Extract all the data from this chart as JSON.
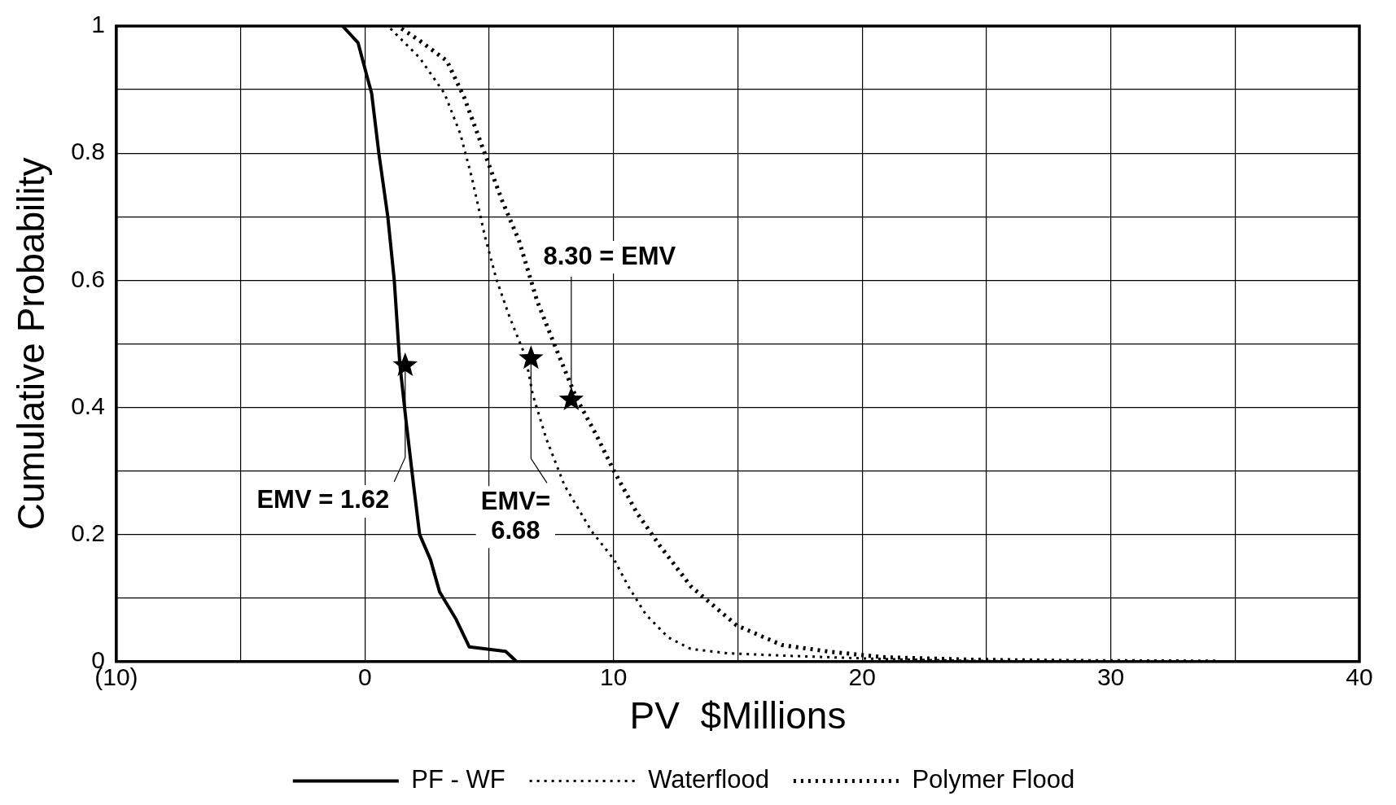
{
  "chart_data": {
    "type": "line",
    "xlabel": "PV  $Millions",
    "ylabel": "Cumulative Probability",
    "xlim": [
      -10,
      40
    ],
    "xticks": [
      {
        "value": -10,
        "label": "(10)"
      },
      {
        "value": -5,
        "label": null
      },
      0,
      {
        "value": 5,
        "label": null
      },
      10,
      {
        "value": 15,
        "label": null
      },
      20,
      {
        "value": 25,
        "label": null
      },
      30,
      {
        "value": 35,
        "label": null
      },
      40
    ],
    "ylim": [
      0,
      1
    ],
    "yticks": [
      0,
      {
        "value": 0.1,
        "label": null
      },
      0.2,
      {
        "value": 0.3,
        "label": null
      },
      0.4,
      {
        "value": 0.5,
        "label": null
      },
      0.6,
      {
        "value": 0.7,
        "label": null
      },
      0.8,
      {
        "value": 0.9,
        "label": null
      },
      1
    ],
    "grid": true,
    "legend": "bottom",
    "marker": "none",
    "series": [
      {
        "name": "PF - WF",
        "color": "#000000",
        "line_style": "solid",
        "x": [
          -0.9,
          -0.28,
          0.09,
          0.27,
          0.56,
          0.92,
          1.18,
          1.4,
          1.65,
          1.95,
          2.2,
          2.64,
          3.0,
          3.66,
          4.2,
          5.66,
          6.1
        ],
        "values": [
          1,
          0.974,
          0.92,
          0.894,
          0.8,
          0.7,
          0.6,
          0.47,
          0.38,
          0.28,
          0.2,
          0.16,
          0.11,
          0.067,
          0.023,
          0.016,
          0
        ]
      },
      {
        "name": "Waterflood",
        "color": "#000000",
        "line_style": "dotted",
        "x": [
          1.03,
          2.2,
          3.2,
          3.84,
          4.31,
          4.82,
          5.3,
          5.84,
          6.46,
          6.75,
          7.3,
          8.03,
          9.12,
          10.03,
          10.6,
          11.3,
          12.2,
          13.1,
          14.6,
          17.1,
          20.8,
          24.4,
          28
        ],
        "values": [
          0.996,
          0.95,
          0.894,
          0.83,
          0.76,
          0.67,
          0.6,
          0.54,
          0.48,
          0.42,
          0.35,
          0.277,
          0.205,
          0.16,
          0.118,
          0.074,
          0.038,
          0.02,
          0.013,
          0.009,
          0.004,
          0.001,
          0
        ]
      },
      {
        "name": "Polymer Flood",
        "color": "#000000",
        "line_style": "dotted",
        "x": [
          1.47,
          2.2,
          3.3,
          4.0,
          4.75,
          5.5,
          6.2,
          6.93,
          7.66,
          8.5,
          9.3,
          10.03,
          10.94,
          11.85,
          13.12,
          14.95,
          16.77,
          18.6,
          20.8,
          24.4,
          28.1,
          34.4
        ],
        "values": [
          0.996,
          0.977,
          0.945,
          0.887,
          0.807,
          0.727,
          0.662,
          0.567,
          0.495,
          0.415,
          0.357,
          0.299,
          0.234,
          0.183,
          0.118,
          0.057,
          0.026,
          0.016,
          0.007,
          0.003,
          0.001,
          0
        ]
      },
      {
        "type": "scatter",
        "color": "#000000",
        "marker": "star",
        "x": [
          1.62,
          6.68,
          8.3
        ],
        "values": [
          0.466,
          0.477,
          0.412
        ]
      }
    ],
    "annotations": [
      {
        "text": "EMV = 1.62",
        "x": 1.62,
        "y": 0.466
      },
      {
        "text": "EMV=\n6.68",
        "x": 6.68,
        "y": 0.477
      },
      {
        "text": "8.30 = EMV",
        "x": 8.3,
        "y": 0.412
      }
    ]
  }
}
